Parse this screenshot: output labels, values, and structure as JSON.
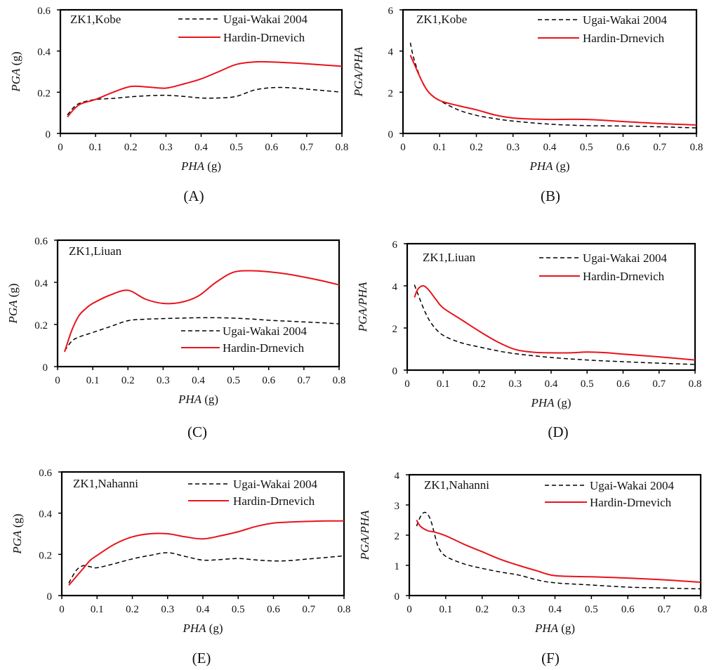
{
  "colors": {
    "axis": "#000000",
    "ugai": "#000000",
    "hardin": "#e8141b",
    "background": "#ffffff"
  },
  "chart_data": [
    {
      "id": "A",
      "type": "line",
      "panel_label": "(A)",
      "annotation": "ZK1,Kobe",
      "xlabel_italic": "PHA",
      "xlabel_unit": " (g)",
      "ylabel_italic": "PGA",
      "ylabel_unit": " (g)",
      "xlim": [
        0,
        0.8
      ],
      "ylim": [
        0,
        0.6
      ],
      "xticks": [
        0,
        0.1,
        0.2,
        0.3,
        0.4,
        0.5,
        0.6,
        0.7,
        0.8
      ],
      "xtick_labels": [
        "0",
        "0.1",
        "0.2",
        "0.3",
        "0.4",
        "0.5",
        "0.6",
        "0.7",
        "0.8"
      ],
      "yticks": [
        0,
        0.2,
        0.4,
        0.6
      ],
      "ytick_labels": [
        "0",
        "0.2",
        "0.4",
        "0.6"
      ],
      "legend_position": "top-right",
      "series": [
        {
          "name": "Ugai-Wakai 2004",
          "style": "dashed",
          "x": [
            0.02,
            0.04,
            0.06,
            0.1,
            0.15,
            0.2,
            0.25,
            0.3,
            0.35,
            0.4,
            0.45,
            0.5,
            0.55,
            0.6,
            0.65,
            0.7,
            0.75,
            0.8
          ],
          "y": [
            0.09,
            0.13,
            0.15,
            0.165,
            0.17,
            0.178,
            0.183,
            0.185,
            0.18,
            0.172,
            0.172,
            0.18,
            0.21,
            0.222,
            0.222,
            0.215,
            0.208,
            0.2
          ]
        },
        {
          "name": "Hardin-Drnevich",
          "style": "solid",
          "x": [
            0.02,
            0.04,
            0.06,
            0.1,
            0.15,
            0.2,
            0.25,
            0.3,
            0.35,
            0.4,
            0.45,
            0.5,
            0.55,
            0.6,
            0.65,
            0.7,
            0.75,
            0.8
          ],
          "y": [
            0.08,
            0.12,
            0.145,
            0.165,
            0.2,
            0.228,
            0.225,
            0.22,
            0.24,
            0.265,
            0.3,
            0.335,
            0.347,
            0.347,
            0.343,
            0.338,
            0.332,
            0.326
          ]
        }
      ]
    },
    {
      "id": "B",
      "type": "line",
      "panel_label": "(B)",
      "annotation": "ZK1,Kobe",
      "xlabel_italic": "PHA",
      "xlabel_unit": " (g)",
      "ylabel_italic": "PGA/PHA",
      "ylabel_unit": "",
      "xlim": [
        0,
        0.8
      ],
      "ylim": [
        0,
        6
      ],
      "xticks": [
        0,
        0.1,
        0.2,
        0.3,
        0.4,
        0.5,
        0.6,
        0.7,
        0.8
      ],
      "xtick_labels": [
        "0",
        "0.1",
        "0.2",
        "0.3",
        "0.4",
        "0.5",
        "0.6",
        "0.7",
        "0.8"
      ],
      "yticks": [
        0,
        2,
        4,
        6
      ],
      "ytick_labels": [
        "0",
        "2",
        "4",
        "6"
      ],
      "legend_position": "top-right",
      "series": [
        {
          "name": "Ugai-Wakai 2004",
          "style": "dashed",
          "x": [
            0.02,
            0.03,
            0.05,
            0.07,
            0.1,
            0.15,
            0.2,
            0.25,
            0.3,
            0.4,
            0.5,
            0.6,
            0.7,
            0.8
          ],
          "y": [
            4.4,
            3.6,
            2.6,
            2.0,
            1.6,
            1.15,
            0.88,
            0.72,
            0.6,
            0.45,
            0.38,
            0.36,
            0.32,
            0.27
          ]
        },
        {
          "name": "Hardin-Drnevich",
          "style": "solid",
          "x": [
            0.02,
            0.03,
            0.05,
            0.07,
            0.1,
            0.15,
            0.2,
            0.25,
            0.3,
            0.35,
            0.4,
            0.5,
            0.6,
            0.7,
            0.8
          ],
          "y": [
            3.8,
            3.4,
            2.6,
            2.0,
            1.6,
            1.35,
            1.15,
            0.9,
            0.75,
            0.7,
            0.68,
            0.68,
            0.58,
            0.48,
            0.41
          ]
        }
      ]
    },
    {
      "id": "C",
      "type": "line",
      "panel_label": "(C)",
      "annotation": "ZK1,Liuan",
      "xlabel_italic": "PHA",
      "xlabel_unit": " (g)",
      "ylabel_italic": "PGA",
      "ylabel_unit": " (g)",
      "xlim": [
        0,
        0.8
      ],
      "ylim": [
        0,
        0.6
      ],
      "xticks": [
        0,
        0.1,
        0.2,
        0.3,
        0.4,
        0.5,
        0.6,
        0.7,
        0.8
      ],
      "xtick_labels": [
        "0",
        "0.1",
        "0.2",
        "0.3",
        "0.4",
        "0.5",
        "0.6",
        "0.7",
        "0.8"
      ],
      "yticks": [
        0,
        0.2,
        0.4,
        0.6
      ],
      "ytick_labels": [
        "0",
        "0.2",
        "0.4",
        "0.6"
      ],
      "legend_position": "bottom-right",
      "series": [
        {
          "name": "Ugai-Wakai 2004",
          "style": "dashed",
          "x": [
            0.02,
            0.04,
            0.06,
            0.1,
            0.15,
            0.2,
            0.25,
            0.3,
            0.35,
            0.4,
            0.45,
            0.5,
            0.55,
            0.6,
            0.65,
            0.7,
            0.75,
            0.8
          ],
          "y": [
            0.075,
            0.12,
            0.14,
            0.162,
            0.19,
            0.218,
            0.225,
            0.228,
            0.23,
            0.232,
            0.232,
            0.23,
            0.226,
            0.22,
            0.216,
            0.212,
            0.208,
            0.203
          ]
        },
        {
          "name": "Hardin-Drnevich",
          "style": "solid",
          "x": [
            0.02,
            0.04,
            0.06,
            0.08,
            0.1,
            0.15,
            0.2,
            0.25,
            0.3,
            0.35,
            0.4,
            0.45,
            0.5,
            0.55,
            0.6,
            0.65,
            0.7,
            0.75,
            0.8
          ],
          "y": [
            0.07,
            0.17,
            0.24,
            0.275,
            0.3,
            0.34,
            0.362,
            0.32,
            0.3,
            0.305,
            0.335,
            0.4,
            0.448,
            0.455,
            0.45,
            0.44,
            0.425,
            0.408,
            0.388
          ]
        }
      ]
    },
    {
      "id": "D",
      "type": "line",
      "panel_label": "(D)",
      "annotation": "ZK1,Liuan",
      "xlabel_italic": "PHA",
      "xlabel_unit": " (g)",
      "ylabel_italic": "PGA/PHA",
      "ylabel_unit": "",
      "xlim": [
        0,
        0.8
      ],
      "ylim": [
        0,
        6
      ],
      "xticks": [
        0,
        0.1,
        0.2,
        0.3,
        0.4,
        0.5,
        0.6,
        0.7,
        0.8
      ],
      "xtick_labels": [
        "0",
        "0.1",
        "0.2",
        "0.3",
        "0.4",
        "0.5",
        "0.6",
        "0.7",
        "0.8"
      ],
      "yticks": [
        0,
        2,
        4,
        6
      ],
      "ytick_labels": [
        "0",
        "2",
        "4",
        "6"
      ],
      "legend_position": "top-right",
      "series": [
        {
          "name": "Ugai-Wakai 2004",
          "style": "dashed",
          "x": [
            0.02,
            0.03,
            0.05,
            0.07,
            0.1,
            0.15,
            0.2,
            0.25,
            0.3,
            0.4,
            0.5,
            0.6,
            0.7,
            0.8
          ],
          "y": [
            4.05,
            3.6,
            2.75,
            2.15,
            1.65,
            1.3,
            1.1,
            0.92,
            0.78,
            0.6,
            0.48,
            0.4,
            0.33,
            0.27
          ]
        },
        {
          "name": "Hardin-Drnevich",
          "style": "solid",
          "x": [
            0.02,
            0.03,
            0.045,
            0.06,
            0.08,
            0.1,
            0.15,
            0.2,
            0.25,
            0.3,
            0.35,
            0.4,
            0.45,
            0.5,
            0.55,
            0.6,
            0.7,
            0.8
          ],
          "y": [
            3.45,
            3.85,
            4.0,
            3.8,
            3.35,
            2.95,
            2.4,
            1.85,
            1.35,
            0.98,
            0.85,
            0.82,
            0.82,
            0.86,
            0.83,
            0.76,
            0.63,
            0.48
          ]
        }
      ]
    },
    {
      "id": "E",
      "type": "line",
      "panel_label": "(E)",
      "annotation": "ZK1,Nahanni",
      "xlabel_italic": "PHA",
      "xlabel_unit": " (g)",
      "ylabel_italic": "PGA",
      "ylabel_unit": " (g)",
      "xlim": [
        0,
        0.8
      ],
      "ylim": [
        0,
        0.6
      ],
      "xticks": [
        0,
        0.1,
        0.2,
        0.3,
        0.4,
        0.5,
        0.6,
        0.7,
        0.8
      ],
      "xtick_labels": [
        "0",
        "0.1",
        "0.2",
        "0.3",
        "0.4",
        "0.5",
        "0.6",
        "0.7",
        "0.8"
      ],
      "yticks": [
        0,
        0.2,
        0.4,
        0.6
      ],
      "ytick_labels": [
        "0",
        "0.2",
        "0.4",
        "0.6"
      ],
      "legend_position": "top-right",
      "series": [
        {
          "name": "Ugai-Wakai 2004",
          "style": "dashed",
          "x": [
            0.02,
            0.04,
            0.06,
            0.08,
            0.1,
            0.15,
            0.2,
            0.25,
            0.3,
            0.35,
            0.4,
            0.45,
            0.5,
            0.55,
            0.6,
            0.65,
            0.7,
            0.75,
            0.8
          ],
          "y": [
            0.06,
            0.12,
            0.145,
            0.14,
            0.135,
            0.155,
            0.178,
            0.195,
            0.208,
            0.19,
            0.172,
            0.175,
            0.18,
            0.173,
            0.168,
            0.17,
            0.178,
            0.185,
            0.193
          ]
        },
        {
          "name": "Hardin-Drnevich",
          "style": "solid",
          "x": [
            0.02,
            0.04,
            0.06,
            0.08,
            0.1,
            0.15,
            0.2,
            0.25,
            0.3,
            0.35,
            0.4,
            0.45,
            0.5,
            0.55,
            0.6,
            0.65,
            0.7,
            0.75,
            0.8
          ],
          "y": [
            0.05,
            0.09,
            0.13,
            0.17,
            0.195,
            0.25,
            0.285,
            0.3,
            0.3,
            0.285,
            0.275,
            0.29,
            0.31,
            0.335,
            0.352,
            0.357,
            0.36,
            0.362,
            0.362
          ]
        }
      ]
    },
    {
      "id": "F",
      "type": "line",
      "panel_label": "(F)",
      "annotation": "ZK1,Nahanni",
      "xlabel_italic": "PHA",
      "xlabel_unit": " (g)",
      "ylabel_italic": "PGA/PHA",
      "ylabel_unit": "",
      "xlim": [
        0,
        0.8
      ],
      "ylim": [
        0,
        4
      ],
      "xticks": [
        0,
        0.1,
        0.2,
        0.3,
        0.4,
        0.5,
        0.6,
        0.7,
        0.8
      ],
      "xtick_labels": [
        "0",
        "0.1",
        "0.2",
        "0.3",
        "0.4",
        "0.5",
        "0.6",
        "0.7",
        "0.8"
      ],
      "yticks": [
        0,
        1,
        2,
        3,
        4
      ],
      "ytick_labels": [
        "0",
        "1",
        "2",
        "3",
        "4"
      ],
      "legend_position": "top-right",
      "series": [
        {
          "name": "Ugai-Wakai 2004",
          "style": "dashed",
          "x": [
            0.02,
            0.03,
            0.04,
            0.05,
            0.06,
            0.07,
            0.08,
            0.1,
            0.15,
            0.2,
            0.25,
            0.3,
            0.35,
            0.4,
            0.5,
            0.6,
            0.7,
            0.8
          ],
          "y": [
            2.3,
            2.6,
            2.75,
            2.7,
            2.45,
            2.0,
            1.6,
            1.3,
            1.05,
            0.9,
            0.78,
            0.68,
            0.52,
            0.42,
            0.35,
            0.28,
            0.25,
            0.22
          ]
        },
        {
          "name": "Hardin-Drnevich",
          "style": "solid",
          "x": [
            0.02,
            0.03,
            0.05,
            0.07,
            0.1,
            0.15,
            0.2,
            0.25,
            0.3,
            0.35,
            0.4,
            0.5,
            0.6,
            0.7,
            0.8
          ],
          "y": [
            2.5,
            2.3,
            2.15,
            2.1,
            1.98,
            1.7,
            1.45,
            1.2,
            1.0,
            0.82,
            0.66,
            0.62,
            0.58,
            0.52,
            0.44
          ]
        }
      ]
    }
  ]
}
